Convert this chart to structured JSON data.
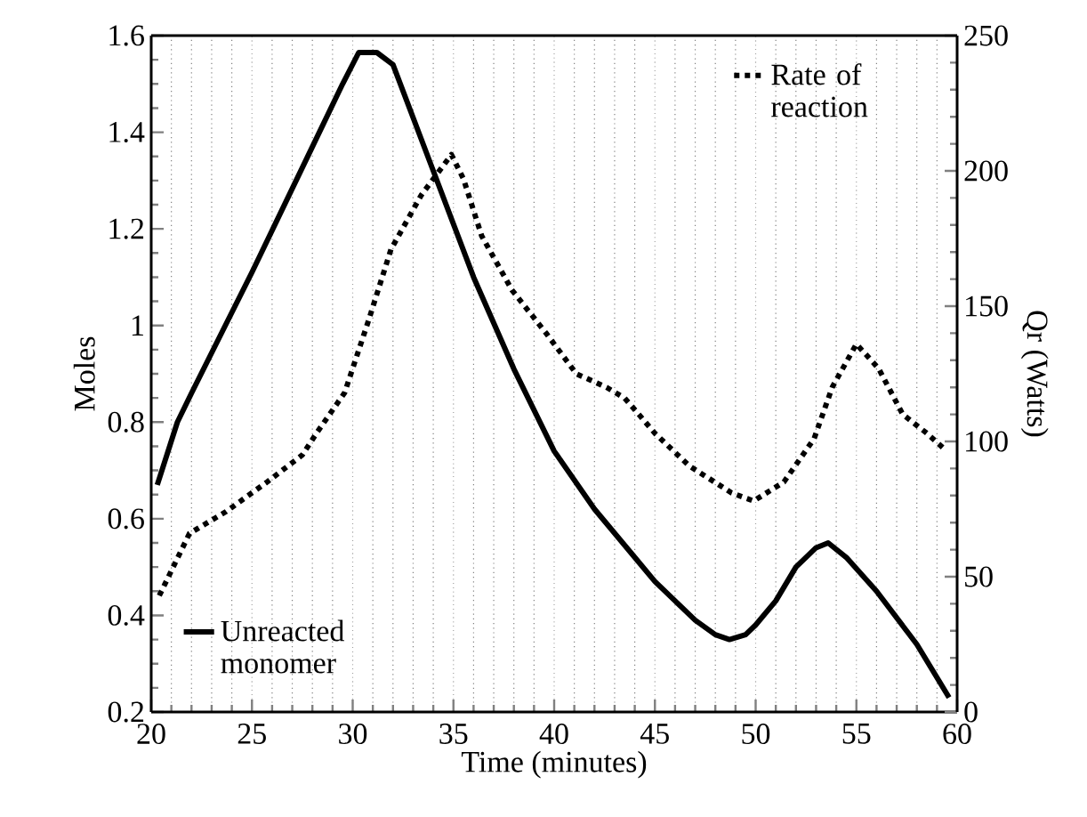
{
  "chart_data": {
    "type": "line",
    "xlabel": "Time (minutes)",
    "ylabel": "Moles",
    "y2label": "Qr (Watts)",
    "xlim": [
      20,
      60
    ],
    "xticks": [
      20,
      25,
      30,
      35,
      40,
      45,
      50,
      55,
      60
    ],
    "ylim": [
      0.2,
      1.6
    ],
    "yticks": [
      0.2,
      0.4,
      0.6,
      0.8,
      1,
      1.2,
      1.4,
      1.6
    ],
    "y2lim": [
      0,
      250
    ],
    "y2ticks": [
      0,
      50,
      100,
      150,
      200,
      250
    ],
    "grid": "x",
    "legend": "top right",
    "series": [
      {
        "name": "Unreacted monomer",
        "color": "#000000",
        "line_style": "solid",
        "x": [
          20.3,
          21.3,
          22,
          25,
          28,
          29.5,
          30.3,
          31.2,
          32,
          33,
          34,
          36,
          38,
          40,
          42,
          44,
          45,
          46,
          47,
          48,
          48.7,
          49.5,
          50,
          51,
          52,
          53,
          53.6,
          54.5,
          56,
          58,
          59.6
        ],
        "values": [
          0.67,
          0.8,
          0.86,
          1.11,
          1.37,
          1.5,
          1.565,
          1.565,
          1.54,
          1.43,
          1.32,
          1.1,
          0.91,
          0.74,
          0.62,
          0.52,
          0.47,
          0.43,
          0.39,
          0.36,
          0.35,
          0.36,
          0.38,
          0.43,
          0.5,
          0.54,
          0.55,
          0.52,
          0.45,
          0.34,
          0.23
        ]
      },
      {
        "name": "Rate of reaction",
        "color": "#000000",
        "line_style": "dotted",
        "axis": "y2",
        "x": [
          20.4,
          21.9,
          23.7,
          25.75,
          27.5,
          28.2,
          29.6,
          30.8,
          31.9,
          33.4,
          34.9,
          35.5,
          36.4,
          37.9,
          39.6,
          41.1,
          42.6,
          43.5,
          44.2,
          45,
          46.7,
          48.8,
          49.9,
          51.4,
          52.9,
          53.8,
          55,
          56.1,
          57.3,
          58.5,
          59.4
        ],
        "values": [
          43,
          66,
          74,
          85,
          95,
          103,
          118,
          145,
          171,
          191,
          206,
          197,
          176,
          156,
          140,
          125,
          120,
          116,
          110,
          103,
          91,
          81,
          78,
          85,
          101,
          120,
          136,
          127,
          110,
          103,
          97
        ]
      }
    ]
  }
}
